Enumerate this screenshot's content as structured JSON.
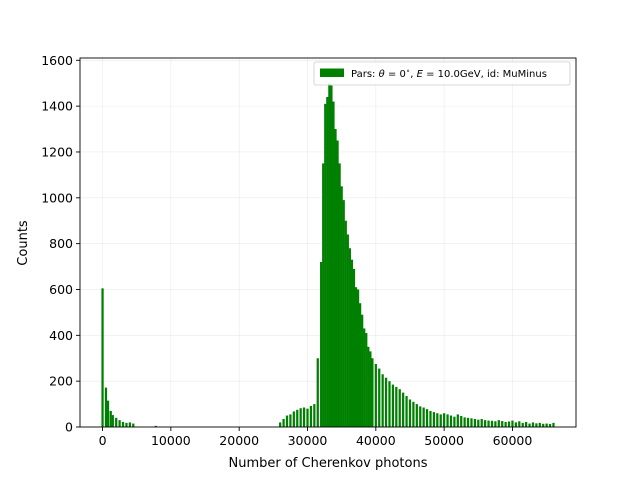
{
  "chart_data": {
    "type": "bar",
    "title": "",
    "xlabel": "Number of Cherenkov photons",
    "ylabel": "Counts",
    "xlim": [
      -3300,
      69300
    ],
    "ylim": [
      0,
      1610
    ],
    "xticks": [
      0,
      10000,
      20000,
      30000,
      40000,
      50000,
      60000
    ],
    "yticks": [
      0,
      200,
      400,
      600,
      800,
      1000,
      1200,
      1400,
      1600
    ],
    "grid": true,
    "legend_position": "top-right",
    "bar_color": "#008000",
    "bin_width": 330,
    "series": [
      {
        "name": "Pars: $\\theta = 0^{\\circ}$, $E = 10.0$GeV, id: MuMinus",
        "legend_display": {
          "pre": "Pars: ",
          "theta": "θ",
          "mid1": " = 0",
          "deg": "∘",
          "mid2": ", ",
          "E": "E",
          "post": " = 10.0GeV, id: MuMinus"
        },
        "x": [
          0,
          500,
          800,
          1200,
          1500,
          2000,
          2500,
          3000,
          3500,
          4000,
          4500,
          7800,
          26000,
          26500,
          27000,
          27500,
          28000,
          28500,
          29000,
          29500,
          30000,
          30500,
          31000,
          31500,
          32000,
          32300,
          32600,
          32900,
          33200,
          33500,
          33800,
          34100,
          34400,
          34700,
          35000,
          35300,
          35600,
          35900,
          36200,
          36500,
          36800,
          37100,
          37400,
          37700,
          38000,
          38300,
          38600,
          38900,
          39200,
          39500,
          40000,
          40500,
          41000,
          41500,
          42000,
          42500,
          43000,
          43500,
          44000,
          44500,
          45000,
          45500,
          46000,
          46500,
          47000,
          47500,
          48000,
          48500,
          49000,
          49500,
          50000,
          50500,
          51000,
          51500,
          52000,
          52500,
          53000,
          53500,
          54000,
          54500,
          55000,
          55500,
          56000,
          56500,
          57000,
          57500,
          58000,
          58500,
          59000,
          59500,
          60000,
          60500,
          61000,
          61500,
          62000,
          62500,
          63000,
          63500,
          64000,
          64500,
          65000,
          65500,
          66000
        ],
        "values": [
          605,
          172,
          115,
          70,
          52,
          40,
          30,
          22,
          18,
          20,
          15,
          5,
          20,
          35,
          50,
          55,
          68,
          75,
          82,
          85,
          80,
          92,
          100,
          300,
          720,
          1150,
          1410,
          1440,
          1500,
          1490,
          1420,
          1300,
          1250,
          1150,
          1050,
          990,
          900,
          840,
          780,
          730,
          690,
          610,
          600,
          540,
          490,
          430,
          410,
          350,
          330,
          300,
          275,
          255,
          230,
          215,
          200,
          185,
          175,
          165,
          150,
          135,
          120,
          110,
          100,
          90,
          85,
          78,
          70,
          65,
          60,
          55,
          60,
          55,
          50,
          45,
          55,
          48,
          42,
          40,
          38,
          35,
          32,
          35,
          30,
          28,
          27,
          25,
          30,
          26,
          22,
          24,
          28,
          20,
          25,
          18,
          22,
          15,
          20,
          16,
          18,
          14,
          15,
          13,
          18
        ]
      }
    ]
  }
}
